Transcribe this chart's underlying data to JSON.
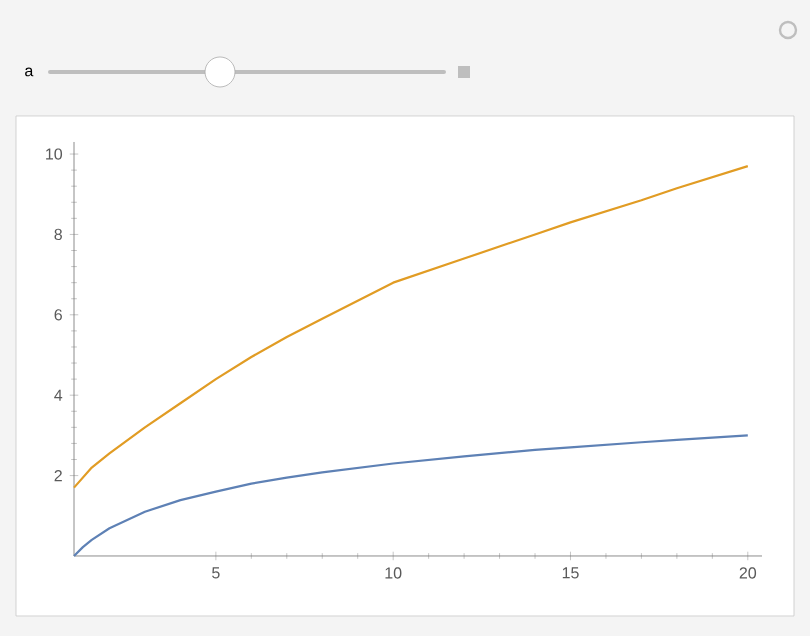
{
  "chart_data": {
    "type": "line",
    "annotations": [
      "a"
    ],
    "xlim": [
      1,
      20.4
    ],
    "ylim": [
      0,
      10.3
    ],
    "xticks": [
      5,
      10,
      15,
      20
    ],
    "yticks": [
      2,
      4,
      6,
      8,
      10
    ],
    "grid": false,
    "marker": "none",
    "line_style": "solid",
    "series": [
      {
        "color": "#e19c24",
        "x": [
          1,
          1.5,
          2,
          3,
          4,
          5,
          6,
          7,
          8,
          10,
          12,
          14,
          15,
          17,
          18,
          20
        ],
        "values": [
          1.7,
          2.2,
          2.55,
          3.2,
          3.8,
          4.4,
          4.95,
          5.45,
          5.9,
          6.8,
          7.4,
          8.0,
          8.3,
          8.85,
          9.15,
          9.7
        ]
      },
      {
        "color": "#5e81b5",
        "x": [
          1,
          1.25,
          1.5,
          2,
          3,
          4,
          5,
          6,
          7,
          8,
          10,
          12,
          14,
          15,
          17,
          18,
          20
        ],
        "values": [
          0,
          0.22,
          0.4,
          0.69,
          1.1,
          1.39,
          1.6,
          1.8,
          1.95,
          2.08,
          2.3,
          2.48,
          2.64,
          2.7,
          2.83,
          2.89,
          3.0
        ]
      }
    ]
  }
}
